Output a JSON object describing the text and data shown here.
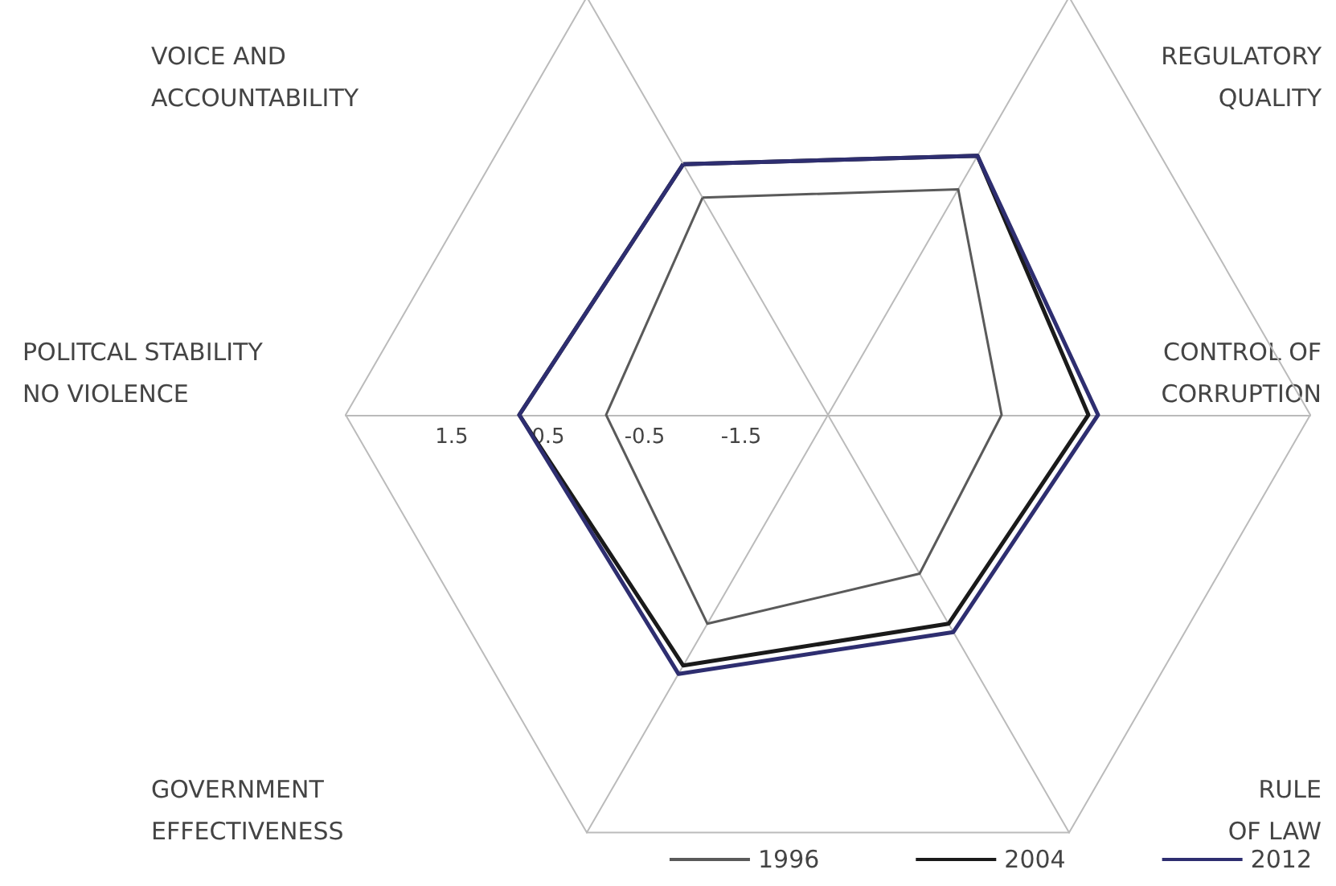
{
  "chart_data": {
    "type": "radar",
    "categories": [
      "VOICE AND ACCOUNTABILITY",
      "REGULATORY QUALITY",
      "CONTROL OF CORRUPTION",
      "RULE OF LAW",
      "GOVERNMENT EFFECTIVENESS",
      "POLITCAL STABILITY NO VIOLENCE"
    ],
    "ylim": [
      -2.5,
      2.5
    ],
    "yticks": [
      -1.5,
      -0.5,
      0.5,
      1.5
    ],
    "legend": "bottom right",
    "series": [
      {
        "name": "1996",
        "color": "#5a5a5a",
        "values": [
          0.1,
          0.2,
          -0.7,
          -0.6,
          0.0,
          -0.2
        ]
      },
      {
        "name": "2004",
        "color": "#1a1a1a",
        "values": [
          0.5,
          0.6,
          0.2,
          0.0,
          0.5,
          0.7
        ]
      },
      {
        "name": "2012",
        "color": "#2e2e70",
        "values": [
          0.5,
          0.6,
          0.3,
          0.1,
          0.6,
          0.7
        ]
      }
    ]
  }
}
